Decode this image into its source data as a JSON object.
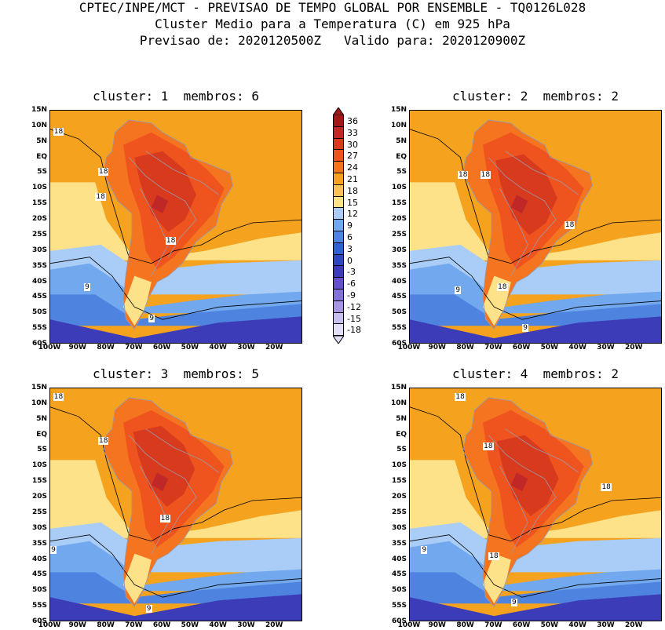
{
  "header": {
    "line1": "CPTEC/INPE/MCT - PREVISAO DE TEMPO GLOBAL POR ENSEMBLE - TQ0126L028",
    "line2": "Cluster Medio para a Temperatura (C) em 925 hPa",
    "line3": "Previsao de: 2020120500Z   Valido para: 2020120900Z"
  },
  "panels": [
    {
      "title": "cluster: 1  membros: 6",
      "labels": [
        "18",
        "18",
        "18",
        "18",
        "9",
        "9"
      ]
    },
    {
      "title": "cluster: 2  membros: 2",
      "labels": [
        "18",
        "18",
        "18",
        "18",
        "9",
        "9"
      ]
    },
    {
      "title": "cluster: 3  membros: 5",
      "labels": [
        "18",
        "18",
        "18",
        "9",
        "9"
      ]
    },
    {
      "title": "cluster: 4  membros: 2",
      "labels": [
        "18",
        "18",
        "18",
        "18",
        "9",
        "9"
      ]
    }
  ],
  "axes": {
    "lat_labels": [
      "15N",
      "10N",
      "5N",
      "EQ",
      "5S",
      "10S",
      "15S",
      "20S",
      "25S",
      "30S",
      "35S",
      "40S",
      "45S",
      "50S",
      "55S",
      "60S"
    ],
    "lon_labels": [
      "100W",
      "90W",
      "80W",
      "70W",
      "60W",
      "50W",
      "40W",
      "30W",
      "20W"
    ]
  },
  "colorbar": {
    "labels": [
      "36",
      "33",
      "30",
      "27",
      "24",
      "21",
      "18",
      "15",
      "12",
      "9",
      "6",
      "3",
      "0",
      "-3",
      "-6",
      "-9",
      "-12",
      "-15",
      "-18"
    ],
    "colors": [
      "#a01818",
      "#c02828",
      "#d83a1e",
      "#f0541e",
      "#f47420",
      "#f5a21e",
      "#fcc15a",
      "#fde28a",
      "#a9cdf6",
      "#72a8ee",
      "#4e84e0",
      "#2f62cf",
      "#2e46bd",
      "#3c3cb8",
      "#6450c8",
      "#8472d6",
      "#a696e2",
      "#c8bef0",
      "#e4def8"
    ]
  }
}
